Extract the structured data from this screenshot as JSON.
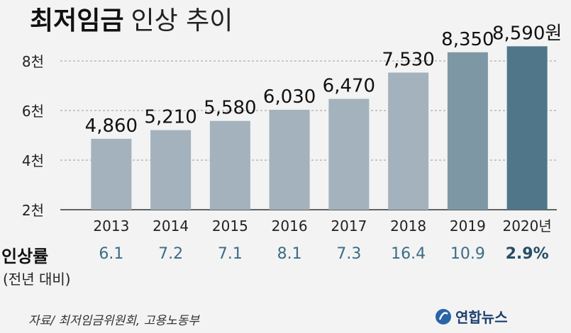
{
  "title": {
    "bold": "최저임금",
    "light": "인상 추이"
  },
  "chart_data": {
    "type": "bar",
    "categories": [
      "2013",
      "2014",
      "2015",
      "2016",
      "2017",
      "2018",
      "2019",
      "2020년"
    ],
    "values": [
      4860,
      5210,
      5580,
      6030,
      6470,
      7530,
      8350,
      8590
    ],
    "value_labels": [
      "4,860",
      "5,210",
      "5,580",
      "6,030",
      "6,470",
      "7,530",
      "8,350",
      "8,590원"
    ],
    "y_ticks": [
      {
        "value": 2000,
        "label": "2천"
      },
      {
        "value": 4000,
        "label": "4천"
      },
      {
        "value": 6000,
        "label": "6천"
      },
      {
        "value": 8000,
        "label": "8천"
      }
    ],
    "ylim": [
      2000,
      8800
    ],
    "grid": true,
    "bar_colors": [
      "#a3b2bc",
      "#a3b2bc",
      "#a3b2bc",
      "#a3b2bc",
      "#a3b2bc",
      "#a3b2bc",
      "#7e97a5",
      "#4f7689"
    ]
  },
  "increase": {
    "header": "인상률",
    "subheader": "(전년 대비)",
    "values": [
      "6.1",
      "7.2",
      "7.1",
      "8.1",
      "7.3",
      "16.4",
      "10.9",
      "2.9%"
    ]
  },
  "source": "자료/ 최저임금위원회, 고용노동부",
  "brand": "연합뉴스",
  "brand_icon": "yonhap-logo-icon"
}
